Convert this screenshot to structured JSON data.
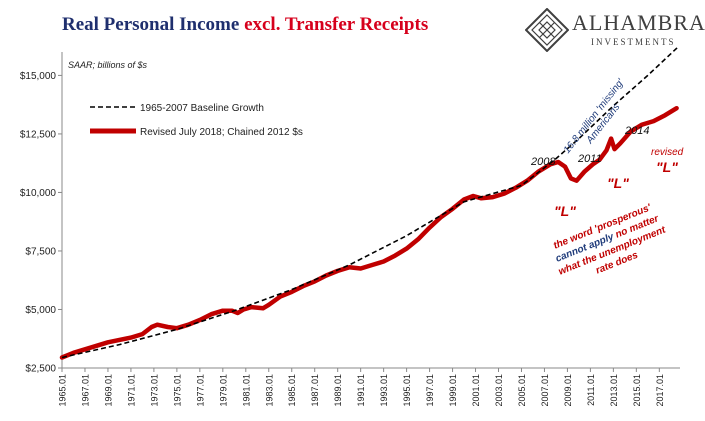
{
  "header": {
    "title_part1": "Real Personal Income",
    "title_part2": "excl. Transfer Receipts",
    "logo_name": "ALHAMBRA",
    "logo_sub": "INVESTMENTS"
  },
  "colors": {
    "title_blue": "#1f2f6e",
    "title_red": "#d6001c",
    "revised_series": "#c00000",
    "baseline_series": "#000000",
    "annotation_blue": "#1f3b7a",
    "annotation_red": "#c00000"
  },
  "chart_data": {
    "type": "line",
    "subtitle": "SAAR; billions of $s",
    "xlabel": "",
    "ylabel": "",
    "xlim": [
      1965.0,
      2018.8
    ],
    "ylim": [
      2500,
      16000
    ],
    "yticks": [
      2500,
      5000,
      7500,
      10000,
      12500,
      15000
    ],
    "ytick_labels": [
      "$2,500",
      "$5,000",
      "$7,500",
      "$10,000",
      "$12,500",
      "$15,000"
    ],
    "xticks": [
      1965,
      1967,
      1969,
      1971,
      1973,
      1975,
      1977,
      1979,
      1981,
      1983,
      1985,
      1987,
      1989,
      1991,
      1993,
      1995,
      1997,
      1999,
      2001,
      2003,
      2005,
      2007,
      2009,
      2011,
      2013,
      2015,
      2017
    ],
    "xtick_labels": [
      "1965.01",
      "1967.01",
      "1969.01",
      "1971.01",
      "1973.01",
      "1975.01",
      "1977.01",
      "1979.01",
      "1981.01",
      "1983.01",
      "1985.01",
      "1987.01",
      "1989.01",
      "1991.01",
      "1993.01",
      "1995.01",
      "1997.01",
      "1999.01",
      "2001.01",
      "2003.01",
      "2005.01",
      "2007.01",
      "2009.01",
      "2011.01",
      "2013.01",
      "2015.01",
      "2017.01"
    ],
    "grid": false,
    "legend_position": "top-left",
    "series": [
      {
        "name": "1965-2007 Baseline Growth",
        "style": "dashed",
        "x": [
          1965.0,
          1970.0,
          1975.0,
          1980.0,
          1985.0,
          1990.0,
          1995.0,
          2000.0,
          2005.0,
          2007.9,
          2010.0,
          2013.0,
          2016.0,
          2018.6
        ],
        "values": [
          2950,
          3500,
          4150,
          4950,
          5850,
          6900,
          8150,
          9600,
          10300,
          11400,
          12300,
          13700,
          15000,
          16200
        ]
      },
      {
        "name": "Revised July 2018; Chained 2012 $s",
        "style": "solid",
        "x": [
          1965.0,
          1966.0,
          1967.0,
          1968.0,
          1969.0,
          1970.0,
          1971.0,
          1972.0,
          1972.8,
          1973.3,
          1974.2,
          1975.0,
          1976.0,
          1977.0,
          1978.0,
          1979.0,
          1979.8,
          1980.3,
          1980.8,
          1981.5,
          1982.5,
          1983.0,
          1984.0,
          1985.0,
          1986.0,
          1987.0,
          1988.0,
          1989.0,
          1990.0,
          1991.0,
          1992.0,
          1993.0,
          1994.0,
          1995.0,
          1996.0,
          1997.0,
          1998.0,
          1999.0,
          2000.0,
          2000.8,
          2001.5,
          2002.5,
          2003.5,
          2004.5,
          2005.5,
          2006.5,
          2007.5,
          2008.2,
          2008.8,
          2009.3,
          2009.8,
          2010.5,
          2011.2,
          2011.8,
          2012.4,
          2012.8,
          2013.1,
          2013.6,
          2014.5,
          2015.5,
          2016.5,
          2017.5,
          2018.5
        ],
        "values": [
          2950,
          3150,
          3300,
          3450,
          3600,
          3700,
          3800,
          3950,
          4250,
          4350,
          4250,
          4200,
          4350,
          4550,
          4800,
          4950,
          4950,
          4850,
          5000,
          5100,
          5050,
          5200,
          5550,
          5750,
          6000,
          6200,
          6450,
          6650,
          6800,
          6750,
          6900,
          7050,
          7300,
          7600,
          8000,
          8500,
          8950,
          9300,
          9700,
          9850,
          9750,
          9800,
          9950,
          10200,
          10500,
          10900,
          11200,
          11300,
          11100,
          10600,
          10500,
          10900,
          11200,
          11400,
          11800,
          12300,
          11850,
          12100,
          12600,
          12900,
          13050,
          13300,
          13600
        ]
      }
    ],
    "annotations": {
      "label_2008": "2008",
      "label_2011": "2011",
      "label_2014": "2014",
      "missing_line1": "16.8 million 'missing'",
      "missing_line2": "Americans",
      "L_2008": "\"L\"",
      "L_2011": "\"L\"",
      "revised_word": "revised",
      "L_revised": "\"L\"",
      "prosperous_line1": "the word 'prosperous'",
      "prosperous_line2_part1": "cannot apply",
      "prosperous_line2_part2": "no matter",
      "prosperous_line3": "what the unemployment",
      "prosperous_line4": "rate does"
    }
  }
}
